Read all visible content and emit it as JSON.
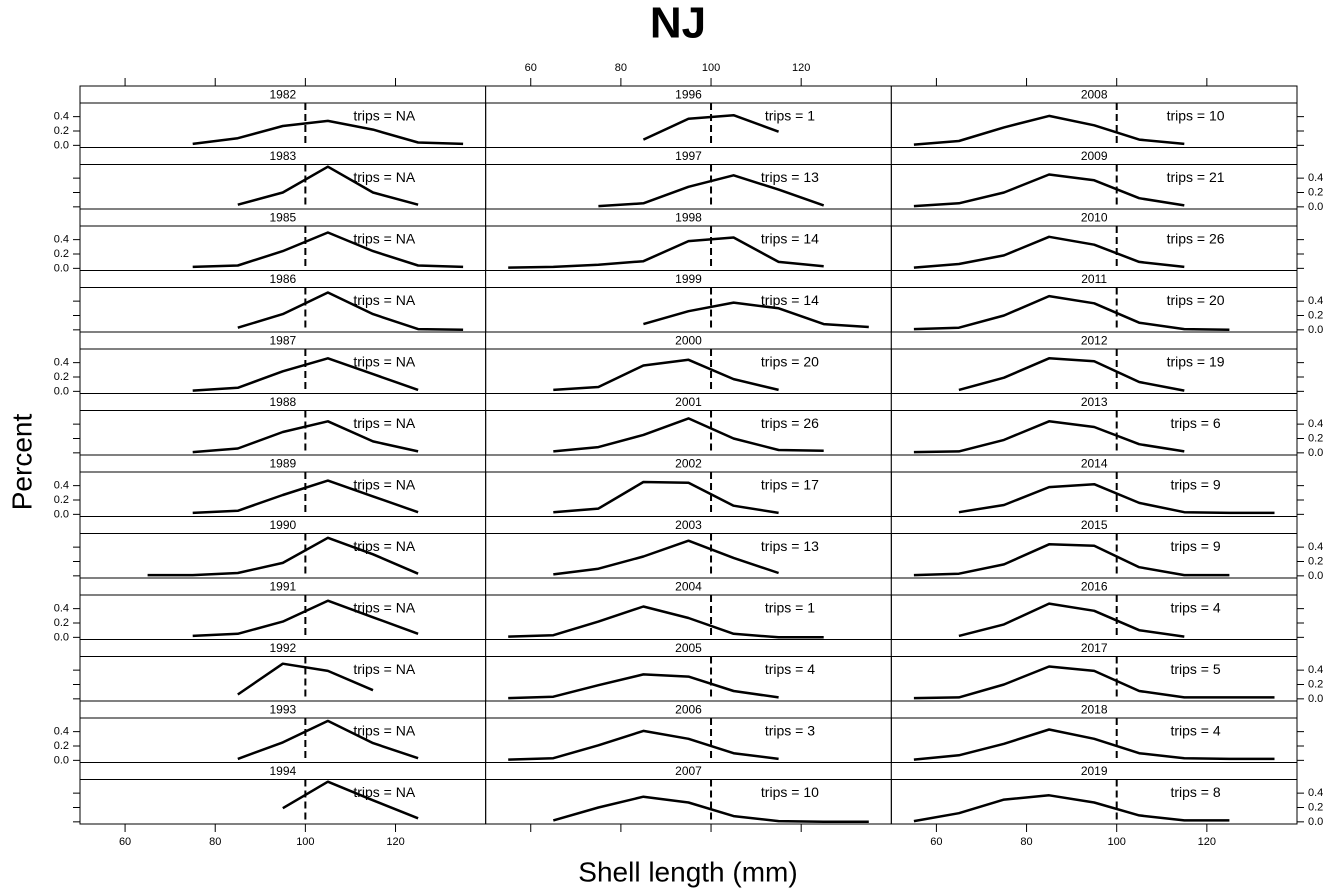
{
  "chart_data": {
    "type": "line",
    "title": "NJ",
    "xlabel": "Shell length (mm)",
    "ylabel": "Percent",
    "xlim": [
      50,
      140
    ],
    "xticks": [
      60,
      80,
      100,
      120
    ],
    "ylim": [
      -0.03,
      0.59
    ],
    "yticks": [
      {
        "value": 0,
        "label": "0.0"
      },
      {
        "value": 0.2,
        "label": "0.2"
      },
      {
        "value": 0.4,
        "label": "0.4"
      }
    ],
    "ref_line": 100,
    "color": "#000000",
    "panels": [
      {
        "strip": "1982",
        "label": "trips = NA",
        "x": [
          75,
          85,
          95,
          105,
          115,
          125,
          135
        ],
        "values": [
          0.02,
          0.1,
          0.27,
          0.34,
          0.22,
          0.04,
          0.02
        ]
      },
      {
        "strip": "1983",
        "label": "trips = NA",
        "x": [
          85,
          95,
          105,
          115,
          125
        ],
        "values": [
          0.03,
          0.2,
          0.56,
          0.2,
          0.03
        ]
      },
      {
        "strip": "1985",
        "label": "trips = NA",
        "x": [
          75,
          85,
          95,
          105,
          115,
          125,
          135
        ],
        "values": [
          0.02,
          0.04,
          0.24,
          0.5,
          0.24,
          0.04,
          0.02
        ]
      },
      {
        "strip": "1986",
        "label": "trips = NA",
        "x": [
          85,
          95,
          105,
          115,
          125,
          135
        ],
        "values": [
          0.03,
          0.22,
          0.52,
          0.22,
          0.01,
          0.0
        ]
      },
      {
        "strip": "1987",
        "label": "trips = NA",
        "x": [
          75,
          85,
          95,
          105,
          115,
          125
        ],
        "values": [
          0.01,
          0.05,
          0.28,
          0.46,
          0.24,
          0.02
        ]
      },
      {
        "strip": "1988",
        "label": "trips = NA",
        "x": [
          75,
          85,
          95,
          105,
          115,
          125
        ],
        "values": [
          0.01,
          0.06,
          0.29,
          0.44,
          0.16,
          0.02
        ]
      },
      {
        "strip": "1989",
        "label": "trips = NA",
        "x": [
          75,
          85,
          95,
          105,
          115,
          125
        ],
        "values": [
          0.02,
          0.05,
          0.27,
          0.47,
          0.25,
          0.03
        ]
      },
      {
        "strip": "1990",
        "label": "trips = NA",
        "x": [
          65,
          75,
          85,
          95,
          105,
          115,
          125
        ],
        "values": [
          0.01,
          0.01,
          0.04,
          0.18,
          0.53,
          0.3,
          0.03
        ]
      },
      {
        "strip": "1991",
        "label": "trips = NA",
        "x": [
          75,
          85,
          95,
          105,
          115,
          125
        ],
        "values": [
          0.02,
          0.05,
          0.22,
          0.51,
          0.28,
          0.05
        ]
      },
      {
        "strip": "1992",
        "label": "trips = NA",
        "x": [
          85,
          95,
          105,
          115
        ],
        "values": [
          0.06,
          0.49,
          0.39,
          0.12
        ]
      },
      {
        "strip": "1993",
        "label": "trips = NA",
        "x": [
          85,
          95,
          105,
          115,
          125
        ],
        "values": [
          0.02,
          0.25,
          0.55,
          0.24,
          0.03
        ]
      },
      {
        "strip": "1994",
        "label": "trips = NA",
        "x": [
          95,
          105,
          115,
          125
        ],
        "values": [
          0.19,
          0.56,
          0.3,
          0.05
        ]
      },
      {
        "strip": "1996",
        "label": "trips = 1",
        "x": [
          85,
          95,
          105,
          115
        ],
        "values": [
          0.08,
          0.37,
          0.42,
          0.19
        ]
      },
      {
        "strip": "1997",
        "label": "trips = 13",
        "x": [
          75,
          85,
          95,
          105,
          115,
          125
        ],
        "values": [
          0.01,
          0.05,
          0.28,
          0.44,
          0.24,
          0.02
        ]
      },
      {
        "strip": "1998",
        "label": "trips = 14",
        "x": [
          55,
          65,
          75,
          85,
          95,
          105,
          115,
          125
        ],
        "values": [
          0.01,
          0.02,
          0.05,
          0.1,
          0.38,
          0.43,
          0.09,
          0.03
        ]
      },
      {
        "strip": "1999",
        "label": "trips = 14",
        "x": [
          85,
          95,
          105,
          115,
          125,
          135
        ],
        "values": [
          0.08,
          0.26,
          0.38,
          0.3,
          0.08,
          0.04
        ]
      },
      {
        "strip": "2000",
        "label": "trips = 20",
        "x": [
          65,
          75,
          85,
          95,
          105,
          115
        ],
        "values": [
          0.02,
          0.06,
          0.36,
          0.44,
          0.17,
          0.02
        ]
      },
      {
        "strip": "2001",
        "label": "trips = 26",
        "x": [
          65,
          75,
          85,
          95,
          105,
          115,
          125
        ],
        "values": [
          0.02,
          0.08,
          0.25,
          0.48,
          0.2,
          0.04,
          0.03
        ]
      },
      {
        "strip": "2002",
        "label": "trips = 17",
        "x": [
          65,
          75,
          85,
          95,
          105,
          115
        ],
        "values": [
          0.03,
          0.08,
          0.45,
          0.44,
          0.12,
          0.02
        ]
      },
      {
        "strip": "2003",
        "label": "trips = 13",
        "x": [
          65,
          75,
          85,
          95,
          105,
          115
        ],
        "values": [
          0.02,
          0.1,
          0.27,
          0.49,
          0.25,
          0.04
        ]
      },
      {
        "strip": "2004",
        "label": "trips = 1",
        "x": [
          55,
          65,
          75,
          85,
          95,
          105,
          115,
          125
        ],
        "values": [
          0.01,
          0.03,
          0.22,
          0.43,
          0.27,
          0.05,
          0.0,
          0.0
        ]
      },
      {
        "strip": "2005",
        "label": "trips = 4",
        "x": [
          55,
          65,
          75,
          85,
          95,
          105,
          115
        ],
        "values": [
          0.01,
          0.03,
          0.19,
          0.34,
          0.31,
          0.11,
          0.02
        ]
      },
      {
        "strip": "2006",
        "label": "trips = 3",
        "x": [
          55,
          65,
          75,
          85,
          95,
          105,
          115
        ],
        "values": [
          0.01,
          0.03,
          0.21,
          0.41,
          0.3,
          0.1,
          0.02
        ]
      },
      {
        "strip": "2007",
        "label": "trips = 10",
        "x": [
          65,
          75,
          85,
          95,
          105,
          115,
          125,
          135
        ],
        "values": [
          0.02,
          0.2,
          0.35,
          0.27,
          0.08,
          0.01,
          0.0,
          0.0
        ]
      },
      {
        "strip": "2008",
        "label": "trips = 10",
        "x": [
          55,
          65,
          75,
          85,
          95,
          105,
          115
        ],
        "values": [
          0.01,
          0.06,
          0.25,
          0.41,
          0.28,
          0.08,
          0.02
        ]
      },
      {
        "strip": "2009",
        "label": "trips = 21",
        "x": [
          55,
          65,
          75,
          85,
          95,
          105,
          115
        ],
        "values": [
          0.01,
          0.05,
          0.2,
          0.45,
          0.37,
          0.12,
          0.02
        ]
      },
      {
        "strip": "2010",
        "label": "trips = 26",
        "x": [
          55,
          65,
          75,
          85,
          95,
          105,
          115
        ],
        "values": [
          0.01,
          0.06,
          0.18,
          0.44,
          0.33,
          0.09,
          0.02
        ]
      },
      {
        "strip": "2011",
        "label": "trips = 20",
        "x": [
          55,
          65,
          75,
          85,
          95,
          105,
          115,
          125
        ],
        "values": [
          0.01,
          0.03,
          0.2,
          0.47,
          0.37,
          0.1,
          0.01,
          0.0
        ]
      },
      {
        "strip": "2012",
        "label": "trips = 19",
        "x": [
          65,
          75,
          85,
          95,
          105,
          115
        ],
        "values": [
          0.02,
          0.19,
          0.46,
          0.42,
          0.13,
          0.01
        ]
      },
      {
        "strip": "2013",
        "label": "trips = 6",
        "x": [
          55,
          65,
          75,
          85,
          95,
          105,
          115
        ],
        "values": [
          0.01,
          0.02,
          0.18,
          0.44,
          0.36,
          0.12,
          0.02
        ]
      },
      {
        "strip": "2014",
        "label": "trips = 9",
        "x": [
          65,
          75,
          85,
          95,
          105,
          115,
          125,
          135
        ],
        "values": [
          0.03,
          0.13,
          0.38,
          0.42,
          0.16,
          0.03,
          0.02,
          0.02
        ]
      },
      {
        "strip": "2015",
        "label": "trips = 9",
        "x": [
          55,
          65,
          75,
          85,
          95,
          105,
          115,
          125
        ],
        "values": [
          0.01,
          0.03,
          0.16,
          0.44,
          0.42,
          0.12,
          0.01,
          0.01
        ]
      },
      {
        "strip": "2016",
        "label": "trips = 4",
        "x": [
          65,
          75,
          85,
          95,
          105,
          115
        ],
        "values": [
          0.02,
          0.18,
          0.47,
          0.37,
          0.1,
          0.01
        ]
      },
      {
        "strip": "2017",
        "label": "trips = 5",
        "x": [
          55,
          65,
          75,
          85,
          95,
          105,
          115,
          125,
          135
        ],
        "values": [
          0.01,
          0.02,
          0.2,
          0.45,
          0.39,
          0.11,
          0.02,
          0.02,
          0.02
        ]
      },
      {
        "strip": "2018",
        "label": "trips = 4",
        "x": [
          55,
          65,
          75,
          85,
          95,
          105,
          115,
          125,
          135
        ],
        "values": [
          0.01,
          0.07,
          0.23,
          0.43,
          0.3,
          0.1,
          0.03,
          0.02,
          0.02
        ]
      },
      {
        "strip": "2019",
        "label": "trips = 8",
        "x": [
          55,
          65,
          75,
          85,
          95,
          105,
          115,
          125
        ],
        "values": [
          0.01,
          0.12,
          0.31,
          0.37,
          0.27,
          0.09,
          0.02,
          0.02
        ]
      }
    ]
  }
}
